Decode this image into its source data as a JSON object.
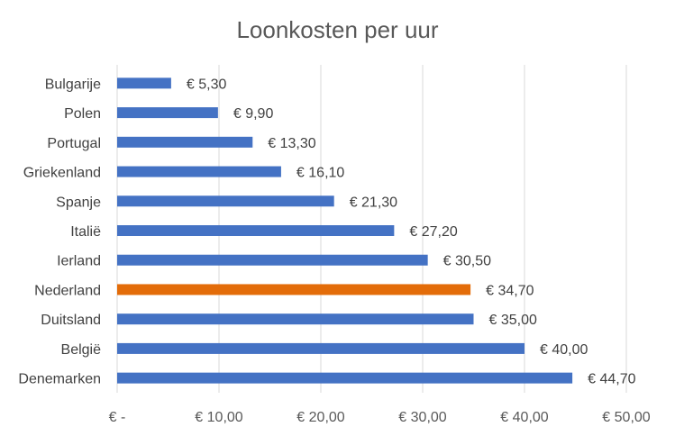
{
  "chart_data": {
    "type": "bar",
    "orientation": "horizontal",
    "title": "Loonkosten per uur",
    "categories": [
      "Bulgarije",
      "Polen",
      "Portugal",
      "Griekenland",
      "Spanje",
      "Italië",
      "Ierland",
      "Nederland",
      "Duitsland",
      "België",
      "Denemarken"
    ],
    "values": [
      5.3,
      9.9,
      13.3,
      16.1,
      21.3,
      27.2,
      30.5,
      34.7,
      35.0,
      40.0,
      44.7
    ],
    "data_labels": [
      "€ 5,30",
      "€ 9,90",
      "€ 13,30",
      "€ 16,10",
      "€ 21,30",
      "€ 27,20",
      "€ 30,50",
      "€ 34,70",
      "€ 35,00",
      "€ 40,00",
      "€ 44,70"
    ],
    "xlim": [
      0,
      50
    ],
    "x_ticks": [
      0,
      10,
      20,
      30,
      40,
      50
    ],
    "x_tick_labels": [
      "€ -",
      "€ 10,00",
      "€ 20,00",
      "€ 30,00",
      "€ 40,00",
      "€ 50,00"
    ],
    "xlabel": "",
    "ylabel": "",
    "grid": true,
    "legend": "none",
    "colors": {
      "default": "#4472C4",
      "highlight": "#E36C09",
      "gridline": "#D9D9D9"
    },
    "highlight_category": "Nederland"
  }
}
